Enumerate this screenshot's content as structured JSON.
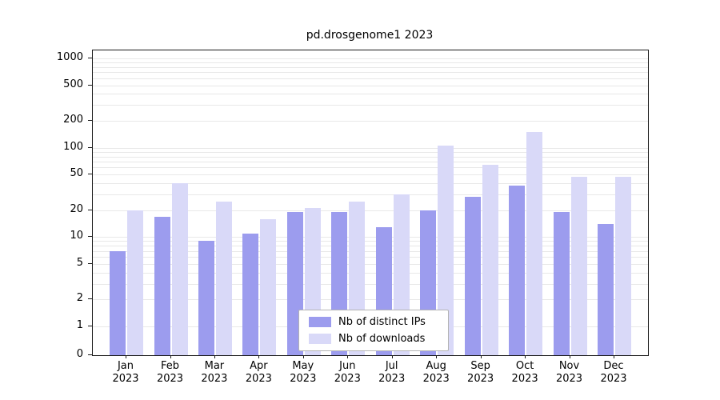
{
  "chart_data": {
    "type": "bar",
    "title": "pd.drosgenome1 2023",
    "categories": [
      "Jan",
      "Feb",
      "Mar",
      "Apr",
      "May",
      "Jun",
      "Jul",
      "Aug",
      "Sep",
      "Oct",
      "Nov",
      "Dec"
    ],
    "year": "2023",
    "series": [
      {
        "name": "Nb of distinct IPs",
        "color": "#9c9cee",
        "values": [
          7,
          17,
          9,
          11,
          19,
          19,
          13,
          20,
          28,
          38,
          19,
          14
        ]
      },
      {
        "name": "Nb of downloads",
        "color": "#d9d9f8",
        "values": [
          20,
          40,
          25,
          16,
          21,
          25,
          30,
          105,
          65,
          150,
          47,
          47
        ]
      }
    ],
    "yscale": "log",
    "ylim": [
      0,
      1000
    ],
    "y_ticks": [
      0,
      1,
      2,
      5,
      10,
      20,
      50,
      100,
      200,
      500,
      1000
    ],
    "y_tick_labels": [
      "0",
      "1",
      "2",
      "5",
      "10",
      "20",
      "50",
      "100",
      "200",
      "500",
      "1000"
    ],
    "grid": true,
    "grid_color": "#e8e8e8",
    "axis_color": "#1a1a1a",
    "legend_position": "inside-bottom-center",
    "legend": [
      "Nb of distinct IPs",
      "Nb of downloads"
    ]
  }
}
